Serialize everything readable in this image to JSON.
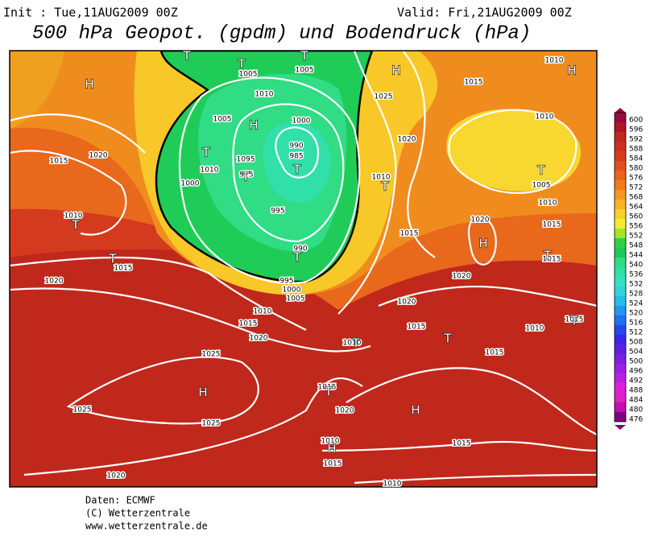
{
  "header": {
    "init": "Init : Tue,11AUG2009 00Z",
    "valid": "Valid: Fri,21AUG2009 00Z",
    "title": "500 hPa Geopot. (gpdm) und Bodendruck (hPa)"
  },
  "map": {
    "isobar_labels": [
      "1010",
      "1005",
      "1005",
      "1015",
      "1025",
      "1010",
      "1000",
      "1005",
      "1010",
      "990",
      "985",
      "1020",
      "1015",
      "1020",
      "1095",
      "1010",
      "975",
      "1005",
      "1000",
      "1010",
      "995",
      "1010",
      "1010",
      "1020",
      "1015",
      "1015",
      "990",
      "1015",
      "1015",
      "1020",
      "1020",
      "995",
      "1000",
      "1005",
      "1020",
      "1010",
      "1015",
      "1020",
      "1015",
      "1010",
      "1015",
      "1010",
      "1015",
      "1025",
      "1015",
      "1025",
      "1020",
      "1025",
      "1010",
      "1015",
      "1015",
      "1020",
      "1010"
    ],
    "centers": [
      "H",
      "H",
      "H",
      "H",
      "T",
      "T",
      "T",
      "T",
      "T",
      "T",
      "T",
      "T",
      "T",
      "T",
      "H",
      "T",
      "T",
      "T",
      "T",
      "T",
      "H",
      "T",
      "H",
      "H"
    ]
  },
  "colorbar": {
    "levels": [
      600,
      596,
      592,
      588,
      584,
      580,
      576,
      572,
      568,
      564,
      560,
      556,
      552,
      548,
      544,
      540,
      536,
      532,
      528,
      524,
      520,
      516,
      512,
      508,
      504,
      500,
      496,
      492,
      488,
      484,
      480,
      476
    ],
    "colors": [
      "#9a0a3c",
      "#b0142c",
      "#c02820",
      "#cc3020",
      "#d83a1e",
      "#e0501e",
      "#e8641c",
      "#f07c1c",
      "#f49820",
      "#f8b424",
      "#f8d02c",
      "#f0ec30",
      "#a0e828",
      "#30d040",
      "#20c85c",
      "#30dc84",
      "#30e0a4",
      "#34e0c4",
      "#30d4d8",
      "#24bce8",
      "#2098f0",
      "#2070f0",
      "#2448ec",
      "#3c24ec",
      "#5c20e4",
      "#7c20e0",
      "#9c20e0",
      "#bc20dc",
      "#dc20dc",
      "#e020c0",
      "#c010b0",
      "#800080"
    ]
  },
  "footer": {
    "source": "Daten: ECMWF",
    "copyright": "(C) Wetterzentrale",
    "url": "www.wetterzentrale.de"
  }
}
